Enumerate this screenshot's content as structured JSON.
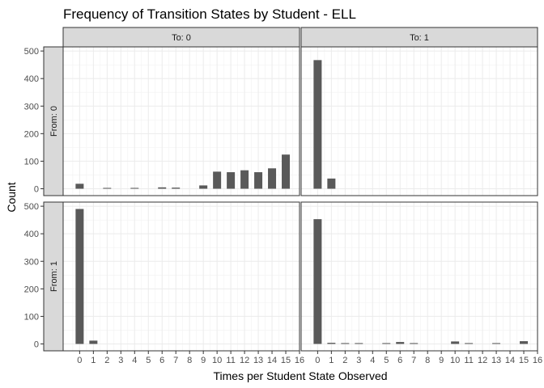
{
  "chart_data": {
    "type": "bar",
    "title": "Frequency of Transition States by Student - ELL",
    "xlabel": "Times per Student State Observed",
    "ylabel": "Count",
    "x_ticks": [
      "0",
      "1",
      "2",
      "3",
      "4",
      "5",
      "6",
      "7",
      "8",
      "9",
      "10",
      "11",
      "12",
      "13",
      "14",
      "15",
      "16"
    ],
    "y_ticks": [
      "0",
      "100",
      "200",
      "300",
      "400",
      "500"
    ],
    "xlim": [
      -1.2,
      16
    ],
    "ylim": [
      -25,
      515
    ],
    "grid": true,
    "bar_color": "#595959",
    "facet_cols": [
      "To: 0",
      "To: 1"
    ],
    "facet_rows": [
      "From: 0",
      "From: 1"
    ],
    "panels": [
      {
        "row": "From: 0",
        "col": "To: 0",
        "x": [
          0,
          2,
          4,
          6,
          7,
          9,
          10,
          11,
          12,
          13,
          14,
          15
        ],
        "values": [
          18,
          3,
          3,
          5,
          4,
          12,
          62,
          60,
          67,
          60,
          74,
          124
        ]
      },
      {
        "row": "From: 0",
        "col": "To: 1",
        "x": [
          0,
          1
        ],
        "values": [
          467,
          37
        ]
      },
      {
        "row": "From: 1",
        "col": "To: 0",
        "x": [
          0,
          1
        ],
        "values": [
          490,
          12
        ]
      },
      {
        "row": "From: 1",
        "col": "To: 1",
        "x": [
          0,
          1,
          2,
          3,
          5,
          6,
          7,
          10,
          11,
          13,
          15
        ],
        "values": [
          453,
          4,
          3,
          3,
          3,
          7,
          3,
          9,
          3,
          3,
          10
        ]
      }
    ]
  }
}
